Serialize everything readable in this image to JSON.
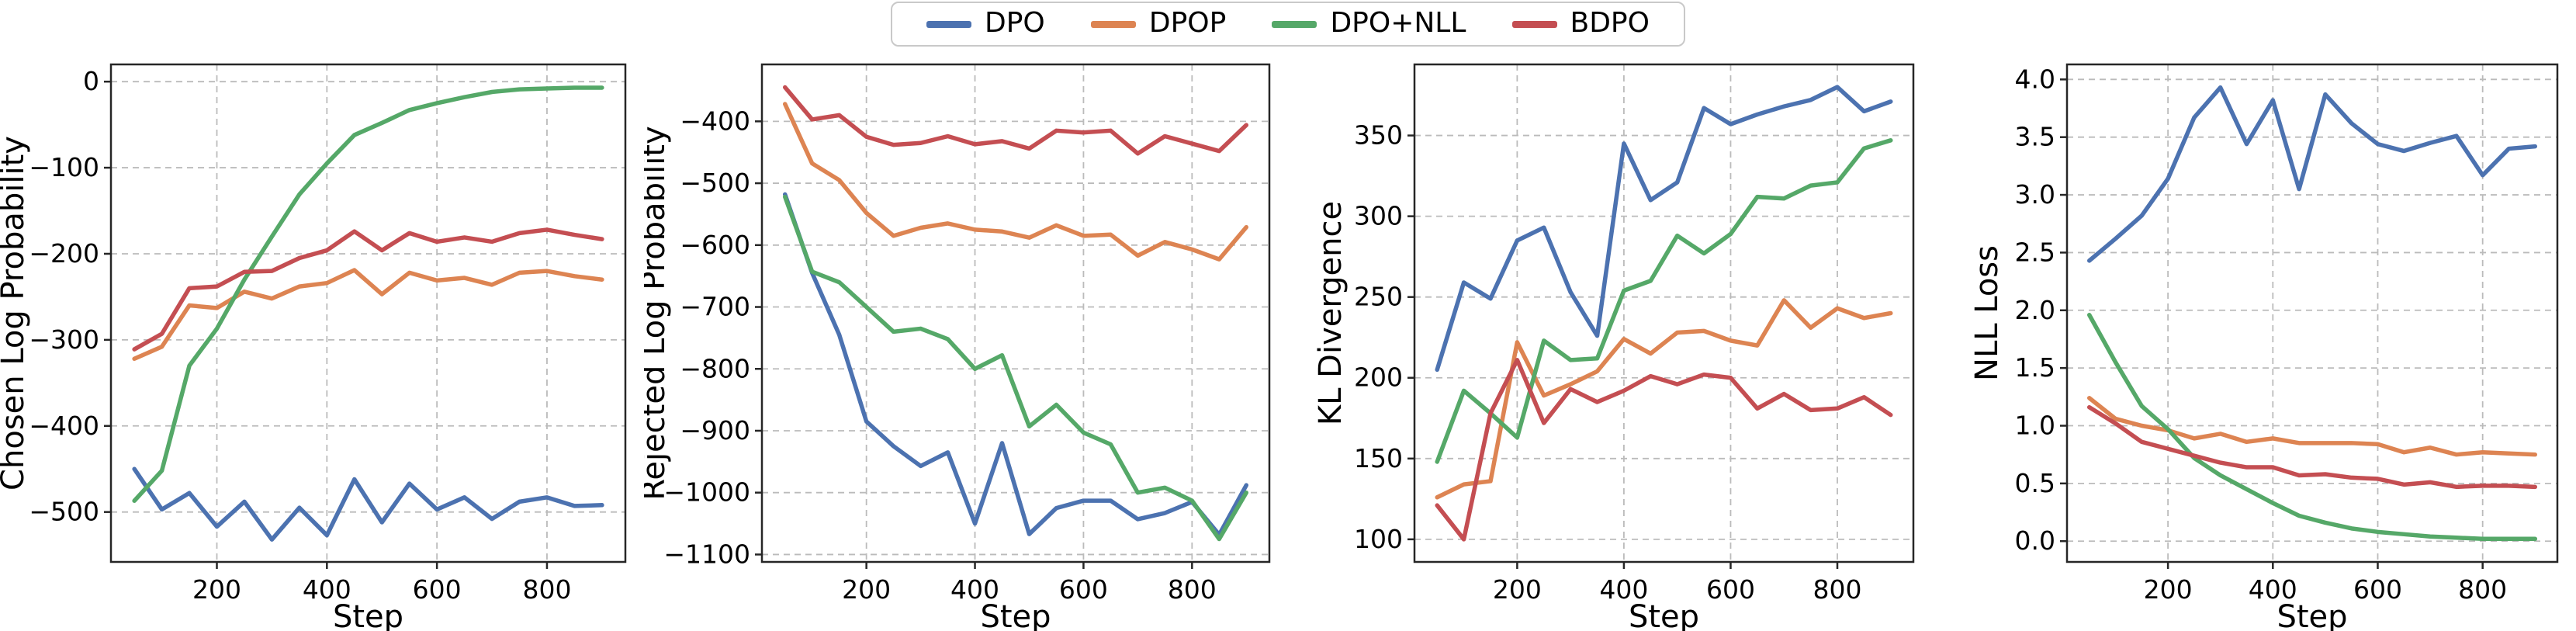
{
  "figure": {
    "background": "#ffffff"
  },
  "palette": {
    "blue": "#4C72B0",
    "orange": "#DD8452",
    "green": "#55A868",
    "red": "#C44E52"
  },
  "legend": {
    "items": [
      {
        "label": "DPO",
        "color": "#4C72B0"
      },
      {
        "label": "DPOP",
        "color": "#DD8452"
      },
      {
        "label": "DPO+NLL",
        "color": "#55A868"
      },
      {
        "label": "BDPO",
        "color": "#C44E52"
      }
    ]
  },
  "chart_data": [
    {
      "type": "line",
      "title": "",
      "xlabel": "Step",
      "ylabel": "Chosen Log Probability",
      "x": [
        50,
        100,
        150,
        200,
        250,
        300,
        350,
        400,
        450,
        500,
        550,
        600,
        650,
        700,
        750,
        800,
        850,
        900
      ],
      "xticks": [
        200,
        400,
        600,
        800
      ],
      "yticks": [
        0,
        -100,
        -200,
        -300,
        -400,
        -500
      ],
      "xlim": [
        7.5,
        942.5
      ],
      "ylim": [
        -558,
        20
      ],
      "ytick_decimals": 0,
      "grid": true,
      "legend_position": "figure-top",
      "series": [
        {
          "name": "DPO",
          "color": "#4C72B0",
          "values": [
            -450,
            -497,
            -478,
            -517,
            -488,
            -532,
            -495,
            -527,
            -462,
            -512,
            -467,
            -497,
            -483,
            -508,
            -488,
            -483,
            -493,
            -492
          ]
        },
        {
          "name": "DPOP",
          "color": "#DD8452",
          "values": [
            -322,
            -308,
            -260,
            -263,
            -244,
            -252,
            -238,
            -234,
            -219,
            -247,
            -222,
            -231,
            -228,
            -236,
            -222,
            -220,
            -226,
            -230
          ]
        },
        {
          "name": "DPO+NLL",
          "color": "#55A868",
          "values": [
            -487,
            -452,
            -330,
            -287,
            -230,
            -180,
            -131,
            -95,
            -62,
            -48,
            -33,
            -25,
            -18,
            -12,
            -9,
            -8,
            -7,
            -7
          ]
        },
        {
          "name": "BDPO",
          "color": "#C44E52",
          "values": [
            -311,
            -293,
            -240,
            -238,
            -221,
            -220,
            -205,
            -196,
            -174,
            -196,
            -176,
            -186,
            -181,
            -186,
            -176,
            -172,
            -178,
            -183
          ]
        }
      ]
    },
    {
      "type": "line",
      "title": "",
      "xlabel": "Step",
      "ylabel": "Rejected Log Probability",
      "x": [
        50,
        100,
        150,
        200,
        250,
        300,
        350,
        400,
        450,
        500,
        550,
        600,
        650,
        700,
        750,
        800,
        850,
        900
      ],
      "xticks": [
        200,
        400,
        600,
        800
      ],
      "yticks": [
        -400,
        -500,
        -600,
        -700,
        -800,
        -900,
        -1000,
        -1100
      ],
      "xlim": [
        7.5,
        942.5
      ],
      "ylim": [
        -1112,
        -308
      ],
      "ytick_decimals": 0,
      "grid": true,
      "series": [
        {
          "name": "DPO",
          "color": "#4C72B0",
          "values": [
            -518,
            -645,
            -745,
            -885,
            -925,
            -957,
            -935,
            -1050,
            -920,
            -1067,
            -1025,
            -1013,
            -1013,
            -1043,
            -1033,
            -1015,
            -1068,
            -988
          ]
        },
        {
          "name": "DPOP",
          "color": "#DD8452",
          "values": [
            -372,
            -468,
            -495,
            -548,
            -585,
            -572,
            -565,
            -575,
            -578,
            -588,
            -568,
            -585,
            -583,
            -617,
            -595,
            -607,
            -623,
            -571
          ]
        },
        {
          "name": "DPO+NLL",
          "color": "#55A868",
          "values": [
            -522,
            -643,
            -660,
            -700,
            -740,
            -735,
            -752,
            -800,
            -778,
            -893,
            -858,
            -903,
            -922,
            -1000,
            -992,
            -1013,
            -1075,
            -1000
          ]
        },
        {
          "name": "BDPO",
          "color": "#C44E52",
          "values": [
            -345,
            -397,
            -390,
            -425,
            -438,
            -435,
            -424,
            -437,
            -432,
            -444,
            -415,
            -418,
            -415,
            -452,
            -424,
            -436,
            -448,
            -406
          ]
        }
      ]
    },
    {
      "type": "line",
      "title": "",
      "xlabel": "Step",
      "ylabel": "KL Divergence",
      "x": [
        50,
        100,
        150,
        200,
        250,
        300,
        350,
        400,
        450,
        500,
        550,
        600,
        650,
        700,
        750,
        800,
        850,
        900
      ],
      "xticks": [
        200,
        400,
        600,
        800
      ],
      "yticks": [
        100,
        150,
        200,
        250,
        300,
        350
      ],
      "xlim": [
        7.5,
        942.5
      ],
      "ylim": [
        86,
        394
      ],
      "ytick_decimals": 0,
      "grid": true,
      "series": [
        {
          "name": "DPO",
          "color": "#4C72B0",
          "values": [
            205,
            259,
            249,
            285,
            293,
            253,
            226,
            345,
            310,
            321,
            367,
            357,
            363,
            368,
            372,
            380,
            365,
            371
          ]
        },
        {
          "name": "DPOP",
          "color": "#DD8452",
          "values": [
            126,
            134,
            136,
            222,
            189,
            196,
            204,
            224,
            215,
            228,
            229,
            223,
            220,
            248,
            231,
            243,
            237,
            240
          ]
        },
        {
          "name": "DPO+NLL",
          "color": "#55A868",
          "values": [
            148,
            192,
            178,
            163,
            223,
            211,
            212,
            254,
            260,
            288,
            277,
            289,
            312,
            311,
            319,
            321,
            342,
            347
          ]
        },
        {
          "name": "BDPO",
          "color": "#C44E52",
          "values": [
            121,
            100,
            178,
            211,
            172,
            193,
            185,
            192,
            201,
            196,
            202,
            200,
            181,
            190,
            180,
            181,
            188,
            177
          ]
        }
      ]
    },
    {
      "type": "line",
      "title": "",
      "xlabel": "Step",
      "ylabel": "NLL Loss",
      "x": [
        50,
        100,
        150,
        200,
        250,
        300,
        350,
        400,
        450,
        500,
        550,
        600,
        650,
        700,
        750,
        800,
        850,
        900
      ],
      "xticks": [
        200,
        400,
        600,
        800
      ],
      "yticks": [
        4.0,
        3.5,
        3.0,
        2.5,
        2.0,
        1.5,
        1.0,
        0.5,
        0.0
      ],
      "xlim": [
        7.5,
        942.5
      ],
      "ylim": [
        -0.18,
        4.13
      ],
      "ytick_decimals": 1,
      "grid": true,
      "series": [
        {
          "name": "DPO",
          "color": "#4C72B0",
          "values": [
            2.43,
            2.62,
            2.82,
            3.14,
            3.67,
            3.93,
            3.44,
            3.82,
            3.05,
            3.87,
            3.62,
            3.44,
            3.38,
            3.45,
            3.51,
            3.17,
            3.4,
            3.42
          ]
        },
        {
          "name": "DPOP",
          "color": "#DD8452",
          "values": [
            1.24,
            1.06,
            1.0,
            0.96,
            0.89,
            0.93,
            0.86,
            0.89,
            0.85,
            0.85,
            0.85,
            0.84,
            0.77,
            0.81,
            0.75,
            0.77,
            0.76,
            0.75
          ]
        },
        {
          "name": "DPO+NLL",
          "color": "#55A868",
          "values": [
            1.96,
            1.55,
            1.17,
            0.97,
            0.72,
            0.57,
            0.45,
            0.33,
            0.22,
            0.16,
            0.11,
            0.08,
            0.06,
            0.04,
            0.03,
            0.02,
            0.02,
            0.02
          ]
        },
        {
          "name": "BDPO",
          "color": "#C44E52",
          "values": [
            1.16,
            1.02,
            0.86,
            0.8,
            0.74,
            0.68,
            0.64,
            0.64,
            0.57,
            0.58,
            0.55,
            0.54,
            0.49,
            0.51,
            0.47,
            0.48,
            0.48,
            0.47
          ]
        }
      ]
    }
  ],
  "style": {
    "spine_color": "#262626",
    "grid_color": "#bbbbbb",
    "tick_label_size": 33,
    "axis_label_size": 40,
    "line_width": 5.5
  }
}
